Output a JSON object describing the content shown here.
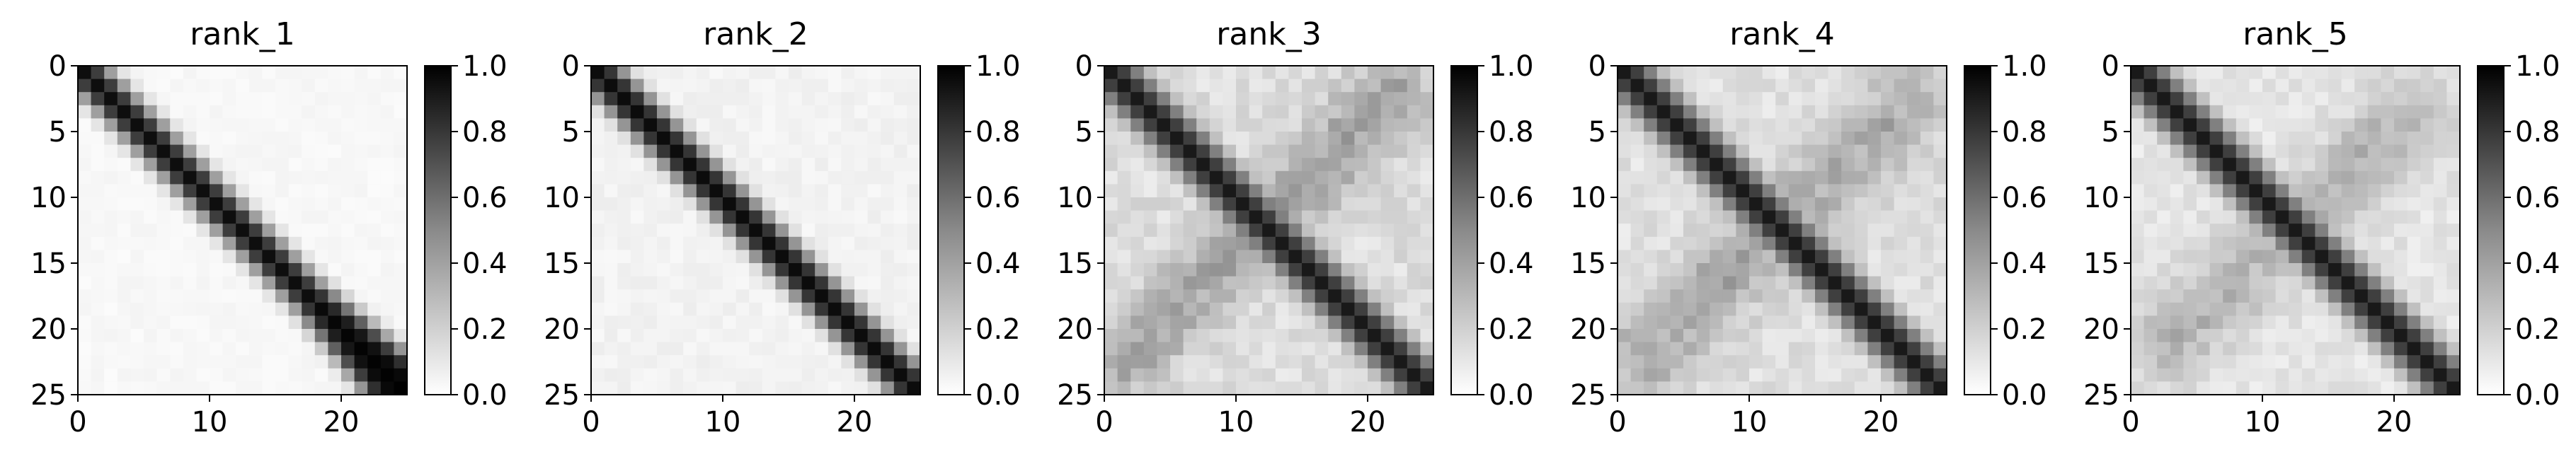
{
  "chart_data": [
    {
      "type": "heatmap",
      "title": "rank_1",
      "size": 25,
      "xlim": [
        0,
        25
      ],
      "ylim": [
        25,
        0
      ],
      "xticks": [
        0,
        10,
        20
      ],
      "yticks": [
        0,
        5,
        10,
        15,
        20,
        25
      ],
      "diagonal": {
        "half_width": 1.7,
        "widen_after": 17,
        "widen_rate": 0.2,
        "softness": 0.6
      },
      "background_level": 0.03,
      "cross_features": [],
      "colorbar": {
        "vmin": 0.0,
        "vmax": 1.0,
        "ticks": [
          "0.0",
          "0.2",
          "0.4",
          "0.6",
          "0.8",
          "1.0"
        ],
        "colormap": "Greys"
      }
    },
    {
      "type": "heatmap",
      "title": "rank_2",
      "size": 25,
      "xlim": [
        0,
        25
      ],
      "ylim": [
        25,
        0
      ],
      "xticks": [
        0,
        10,
        20
      ],
      "yticks": [
        0,
        5,
        10,
        15,
        20,
        25
      ],
      "diagonal": {
        "half_width": 1.8,
        "widen_after": 25,
        "widen_rate": 0,
        "softness": 0.6
      },
      "background_level": 0.05,
      "cross_features": [],
      "colorbar": {
        "vmin": 0.0,
        "vmax": 1.0,
        "ticks": [
          "0.0",
          "0.2",
          "0.4",
          "0.6",
          "0.8",
          "1.0"
        ],
        "colormap": "Greys"
      }
    },
    {
      "type": "heatmap",
      "title": "rank_3",
      "size": 25,
      "xlim": [
        0,
        25
      ],
      "ylim": [
        25,
        0
      ],
      "xticks": [
        0,
        10,
        20
      ],
      "yticks": [
        0,
        5,
        10,
        15,
        20,
        25
      ],
      "diagonal": {
        "half_width": 2.0,
        "widen_after": 25,
        "widen_rate": 0,
        "softness": 0.9
      },
      "background_level": 0.13,
      "cross_features": [
        {
          "level": 0.25,
          "width": 2.0,
          "from": [
            2,
            22
          ],
          "to": [
            22,
            2
          ]
        }
      ],
      "colorbar": {
        "vmin": 0.0,
        "vmax": 1.0,
        "ticks": [
          "0.0",
          "0.2",
          "0.4",
          "0.6",
          "0.8",
          "1.0"
        ],
        "colormap": "Greys"
      }
    },
    {
      "type": "heatmap",
      "title": "rank_4",
      "size": 25,
      "xlim": [
        0,
        25
      ],
      "ylim": [
        25,
        0
      ],
      "xticks": [
        0,
        10,
        20
      ],
      "yticks": [
        0,
        5,
        10,
        15,
        20,
        25
      ],
      "diagonal": {
        "half_width": 2.0,
        "widen_after": 25,
        "widen_rate": 0,
        "softness": 0.9
      },
      "background_level": 0.12,
      "cross_features": [
        {
          "level": 0.22,
          "width": 2.2,
          "from": [
            2,
            22
          ],
          "to": [
            22,
            3
          ]
        }
      ],
      "colorbar": {
        "vmin": 0.0,
        "vmax": 1.0,
        "ticks": [
          "0.0",
          "0.2",
          "0.4",
          "0.6",
          "0.8",
          "1.0"
        ],
        "colormap": "Greys"
      }
    },
    {
      "type": "heatmap",
      "title": "rank_5",
      "size": 25,
      "xlim": [
        0,
        25
      ],
      "ylim": [
        25,
        0
      ],
      "xticks": [
        0,
        10,
        20
      ],
      "yticks": [
        0,
        5,
        10,
        15,
        20,
        25
      ],
      "diagonal": {
        "half_width": 2.0,
        "widen_after": 25,
        "widen_rate": 0,
        "softness": 0.9
      },
      "background_level": 0.1,
      "cross_features": [
        {
          "level": 0.2,
          "width": 2.2,
          "from": [
            3,
            21
          ],
          "to": [
            21,
            4
          ]
        }
      ],
      "colorbar": {
        "vmin": 0.0,
        "vmax": 1.0,
        "ticks": [
          "0.0",
          "0.2",
          "0.4",
          "0.6",
          "0.8",
          "1.0"
        ],
        "colormap": "Greys"
      }
    }
  ]
}
